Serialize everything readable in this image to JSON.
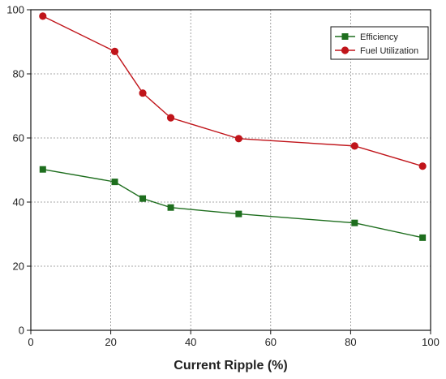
{
  "chart_data": {
    "type": "line",
    "title": "",
    "xlabel": "Current Ripple (%)",
    "ylabel": "",
    "xlim": [
      0,
      100
    ],
    "ylim": [
      0,
      100
    ],
    "xticks": [
      0,
      20,
      40,
      60,
      80,
      100
    ],
    "yticks": [
      0,
      20,
      40,
      60,
      80,
      100
    ],
    "grid": true,
    "legend_position": "top-right",
    "series": [
      {
        "name": "Efficiency",
        "color": "#1e6e1e",
        "marker": "square",
        "x": [
          3,
          21,
          28,
          35,
          52,
          81,
          98
        ],
        "y": [
          50.2,
          46.3,
          41.1,
          38.3,
          36.3,
          33.5,
          28.9
        ]
      },
      {
        "name": "Fuel Utilization",
        "color": "#c0141a",
        "marker": "circle",
        "x": [
          3,
          21,
          28,
          35,
          52,
          81,
          98
        ],
        "y": [
          98.0,
          87.0,
          74.0,
          66.3,
          59.8,
          57.5,
          51.2
        ]
      }
    ]
  }
}
